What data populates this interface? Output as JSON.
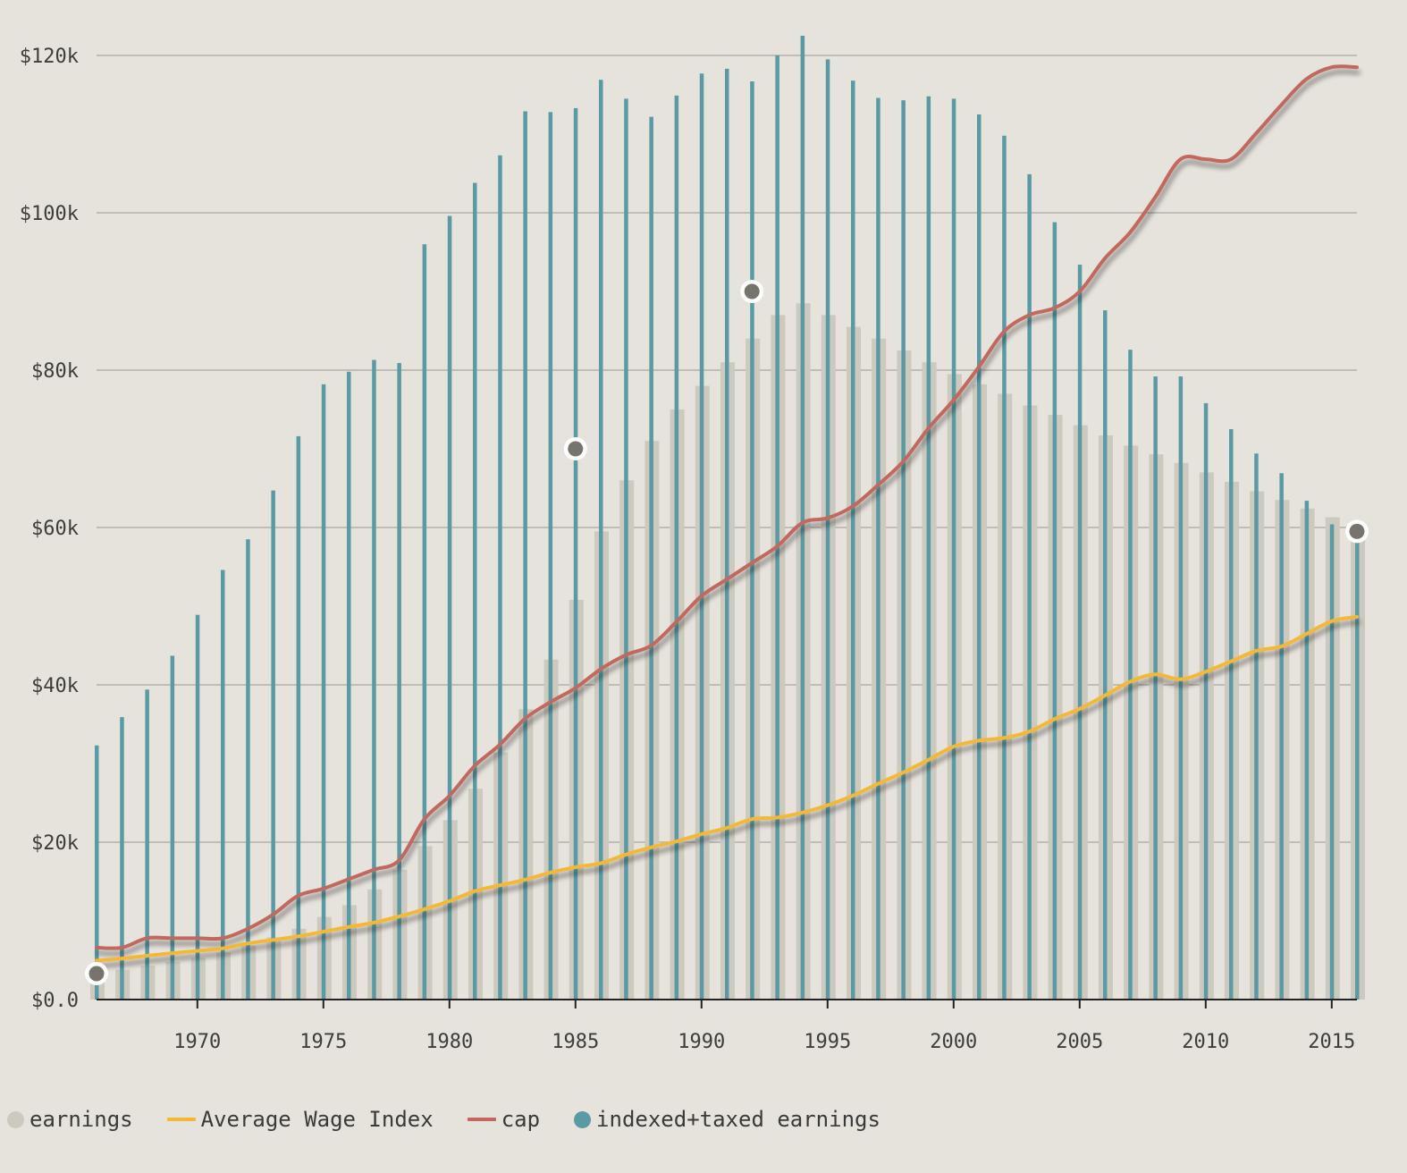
{
  "chart_data": {
    "type": "bar",
    "x": [
      1966,
      1967,
      1968,
      1969,
      1970,
      1971,
      1972,
      1973,
      1974,
      1975,
      1976,
      1977,
      1978,
      1979,
      1980,
      1981,
      1982,
      1983,
      1984,
      1985,
      1986,
      1987,
      1988,
      1989,
      1990,
      1991,
      1992,
      1993,
      1994,
      1995,
      1996,
      1997,
      1998,
      1999,
      2000,
      2001,
      2002,
      2003,
      2004,
      2005,
      2006,
      2007,
      2008,
      2009,
      2010,
      2011,
      2012,
      2013,
      2014,
      2015,
      2016
    ],
    "xticks": [
      1970,
      1975,
      1980,
      1985,
      1990,
      1995,
      2000,
      2005,
      2010,
      2015
    ],
    "ylim": [
      0,
      120000
    ],
    "yticks": [
      0,
      20000,
      40000,
      60000,
      80000,
      100000,
      120000
    ],
    "ytick_labels": [
      "$0.0",
      "$20k",
      "$40k",
      "$60k",
      "$80k",
      "$100k",
      "$120k"
    ],
    "grid": true,
    "legend_position": "bottom-left",
    "series": [
      {
        "name": "earnings",
        "kind": "bar",
        "color": "#cdc9bf",
        "values": [
          3300,
          3800,
          4300,
          4800,
          5300,
          6000,
          6900,
          7900,
          9000,
          10500,
          12000,
          14000,
          16500,
          19500,
          22800,
          26800,
          31400,
          36900,
          43200,
          50800,
          59500,
          66000,
          71000,
          75000,
          78000,
          81000,
          84000,
          87000,
          88500,
          87000,
          85500,
          84000,
          82500,
          81000,
          79500,
          78200,
          77000,
          75500,
          74300,
          73000,
          71700,
          70400,
          69300,
          68200,
          67000,
          65800,
          64600,
          63500,
          62400,
          61300,
          60200
        ]
      },
      {
        "name": "indexed+taxed earnings",
        "kind": "bar",
        "color": "#5a9aa4",
        "values": [
          32300,
          35900,
          39400,
          43700,
          48900,
          54600,
          58500,
          64700,
          71600,
          78200,
          79800,
          81300,
          80900,
          96000,
          99600,
          103800,
          107300,
          112900,
          112800,
          113300,
          116900,
          114500,
          112200,
          114900,
          117700,
          118300,
          116700,
          120000,
          122500,
          119500,
          116800,
          114600,
          114300,
          114800,
          114500,
          112500,
          109800,
          104900,
          98800,
          93400,
          87600,
          82600,
          79200,
          79200,
          75800,
          72500,
          69400,
          66900,
          63400,
          60400,
          59000
        ]
      },
      {
        "name": "Average Wage Index",
        "kind": "line",
        "color": "#f3b835",
        "values": [
          4938,
          5213,
          5572,
          5894,
          6186,
          6497,
          7134,
          7580,
          8031,
          8631,
          9226,
          9779,
          10556,
          11479,
          12513,
          13773,
          14531,
          15239,
          16135,
          16823,
          17322,
          18427,
          19334,
          20100,
          21028,
          21812,
          22935,
          23133,
          23754,
          24706,
          25914,
          27426,
          28861,
          30470,
          32155,
          32922,
          33252,
          34065,
          35649,
          36953,
          38651,
          40405,
          41335,
          40712,
          41674,
          42980,
          44322,
          44888,
          46481,
          48099,
          48642
        ]
      },
      {
        "name": "cap",
        "kind": "line",
        "color": "#c1675f",
        "values": [
          6600,
          6600,
          7800,
          7800,
          7800,
          7800,
          9000,
          10800,
          13200,
          14100,
          15300,
          16500,
          17700,
          22900,
          25900,
          29700,
          32400,
          35700,
          37800,
          39600,
          42000,
          43800,
          45000,
          48000,
          51300,
          53400,
          55500,
          57600,
          60600,
          61200,
          62700,
          65400,
          68400,
          72600,
          76200,
          80400,
          84900,
          87000,
          87900,
          90000,
          94200,
          97500,
          102000,
          106800,
          106800,
          106800,
          110100,
          113700,
          117000,
          118500,
          118500
        ]
      }
    ],
    "highlighted_points": [
      {
        "x": 1966,
        "y": 3300
      },
      {
        "x": 1985,
        "y": 70000
      },
      {
        "x": 1992,
        "y": 90000
      },
      {
        "x": 2016,
        "y": 59500
      }
    ]
  },
  "legend": {
    "items": [
      {
        "label": "earnings",
        "color": "#cdc9bf",
        "shape": "dot"
      },
      {
        "label": "Average Wage Index",
        "color": "#f3b835",
        "shape": "line"
      },
      {
        "label": "cap",
        "color": "#c1675f",
        "shape": "line"
      },
      {
        "label": "indexed+taxed earnings",
        "color": "#5a9aa4",
        "shape": "dot"
      }
    ]
  }
}
